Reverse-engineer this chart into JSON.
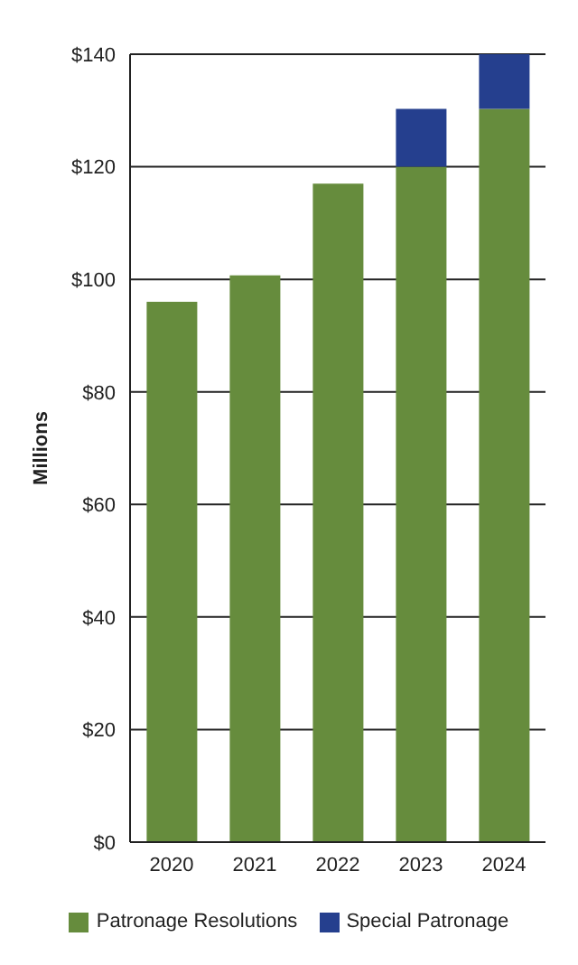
{
  "chart_data": {
    "type": "bar",
    "ylabel": "Millions",
    "categories": [
      "2020",
      "2021",
      "2022",
      "2023",
      "2024"
    ],
    "series": [
      {
        "name": "Patronage Resolutions",
        "color": "#668c3d",
        "values": [
          96,
          100.7,
          117,
          120,
          130.3
        ]
      },
      {
        "name": "Special Patronage",
        "color": "#253f8e",
        "values": [
          null,
          null,
          null,
          10.3,
          9.7
        ]
      }
    ],
    "stacked": true,
    "ylim": [
      0,
      140
    ],
    "yticks": [
      {
        "value": 0,
        "label": "$0"
      },
      {
        "value": 20,
        "label": "$20"
      },
      {
        "value": 40,
        "label": "$40"
      },
      {
        "value": 60,
        "label": "$60"
      },
      {
        "value": 80,
        "label": "$80"
      },
      {
        "value": 100,
        "label": "$100"
      },
      {
        "value": 120,
        "label": "$120"
      },
      {
        "value": 140,
        "label": "$140"
      }
    ],
    "grid": "y",
    "legend": "bottom"
  }
}
